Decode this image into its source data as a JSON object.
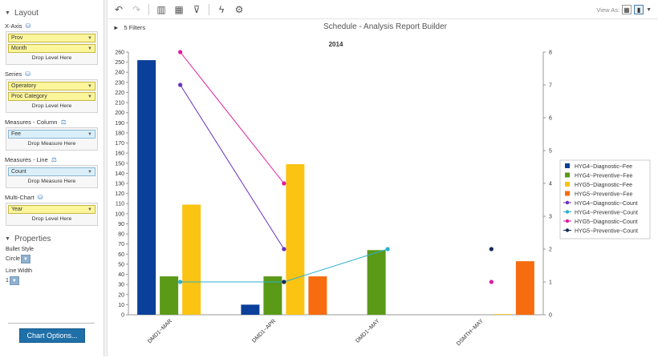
{
  "sidebar": {
    "layout_label": "Layout",
    "xaxis_label": "X-Axis",
    "xaxis_fields": [
      "Prov",
      "Month"
    ],
    "xaxis_drop": "Drop Level Here",
    "series_label": "Series",
    "series_fields": [
      "Operatory",
      "Proc Category"
    ],
    "series_drop": "Drop Level Here",
    "col_label": "Measures - Column",
    "col_field": "Fee",
    "col_drop": "Drop Measure Here",
    "line_label": "Measures - Line",
    "line_field": "Count",
    "line_drop": "Drop Measure Here",
    "multi_label": "Multi-Chart",
    "multi_field": "Year",
    "multi_drop": "Drop Level Here",
    "properties_label": "Properties",
    "bullet_label": "Bullet Style",
    "bullet_value": "Circle",
    "linewidth_label": "Line Width",
    "linewidth_value": "1",
    "chart_options": "Chart Options..."
  },
  "toolbar": {
    "view_as": "View As:"
  },
  "header": {
    "filters": "5 Filters",
    "title": "Schedule - Analysis Report Builder"
  },
  "chart_data": {
    "type": "bar",
    "title": "2014",
    "categories": [
      "DMD1~MAR",
      "DMD1~APR",
      "DMD1~MAY",
      "DSMTH~MAY"
    ],
    "ylim": [
      0,
      260
    ],
    "y2lim": [
      0,
      8
    ],
    "y_ticks": [
      0,
      10,
      20,
      30,
      40,
      50,
      60,
      70,
      80,
      90,
      100,
      110,
      120,
      130,
      140,
      150,
      160,
      170,
      180,
      190,
      200,
      210,
      220,
      230,
      240,
      250,
      260
    ],
    "y2_ticks": [
      0,
      1,
      2,
      3,
      4,
      5,
      6,
      7,
      8
    ],
    "grid": false,
    "legend_position": "right",
    "series": [
      {
        "name": "HYG4~Diagnostic~Fee",
        "kind": "bar",
        "color": "#0a3f9a",
        "values": [
          252,
          10,
          null,
          null
        ]
      },
      {
        "name": "HYG4~Preventive~Fee",
        "kind": "bar",
        "color": "#5a9a17",
        "values": [
          38,
          38,
          64,
          null
        ]
      },
      {
        "name": "HYG5~Diagnostic~Fee",
        "kind": "bar",
        "color": "#fbc312",
        "values": [
          109,
          149,
          null,
          0
        ]
      },
      {
        "name": "HYG5~Preventive~Fee",
        "kind": "bar",
        "color": "#f66c0e",
        "values": [
          null,
          38,
          null,
          53
        ]
      },
      {
        "name": "HYG4~Diagnostic~Count",
        "kind": "line",
        "color": "#6a2fc2",
        "values": [
          7,
          2,
          null,
          null
        ]
      },
      {
        "name": "HYG4~Preventive~Count",
        "kind": "line",
        "color": "#2bb0cf",
        "values": [
          1,
          1,
          2,
          null
        ]
      },
      {
        "name": "HYG5~Diagnostic~Count",
        "kind": "line",
        "color": "#e01b9f",
        "values": [
          8,
          4,
          null,
          1
        ]
      },
      {
        "name": "HYG5~Preventive~Count",
        "kind": "line",
        "color": "#152a5a",
        "values": [
          null,
          1,
          null,
          2
        ]
      }
    ]
  }
}
